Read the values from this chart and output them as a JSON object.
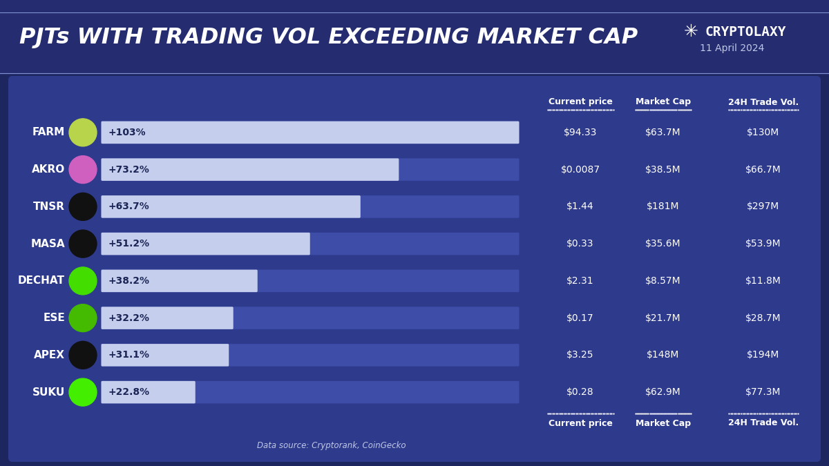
{
  "title": "PJTs WITH TRADING VOL EXCEEDING MARKET CAP",
  "subtitle": "11 April 2024",
  "logo_text": "CRYPTOLAXY",
  "source": "Data source: Cryptorank, CoinGecko",
  "bg_outer": "#1e2660",
  "bg_title": "#252d70",
  "bg_card": "#2e3a8c",
  "bar_bg_color": "#3d4da8",
  "bar_fg_color": "#c5ceed",
  "tokens": [
    "FARM",
    "AKRO",
    "TNSR",
    "MASA",
    "DECHAT",
    "ESE",
    "APEX",
    "SUKU"
  ],
  "percentages": [
    103,
    73.2,
    63.7,
    51.2,
    38.2,
    32.2,
    31.1,
    22.8
  ],
  "pct_labels": [
    "+103%",
    "+73.2%",
    "+63.7%",
    "+51.2%",
    "+38.2%",
    "+32.2%",
    "+31.1%",
    "+22.8%"
  ],
  "current_price": [
    "$94.33",
    "$0.0087",
    "$1.44",
    "$0.33",
    "$2.31",
    "$0.17",
    "$3.25",
    "$0.28"
  ],
  "market_cap": [
    "$63.7M",
    "$38.5M",
    "$181M",
    "$35.6M",
    "$8.57M",
    "$21.7M",
    "$148M",
    "$62.9M"
  ],
  "trade_vol": [
    "$130M",
    "$66.7M",
    "$297M",
    "$53.9M",
    "$11.8M",
    "$28.7M",
    "$194M",
    "$77.3M"
  ],
  "icon_colors": [
    "#b8d44a",
    "#d060c0",
    "#111111",
    "#111111",
    "#44dd00",
    "#44bb00",
    "#111111",
    "#44ee00"
  ],
  "col_header": [
    "Current price",
    "Market Cap",
    "24H Trade Vol."
  ],
  "max_pct": 103
}
